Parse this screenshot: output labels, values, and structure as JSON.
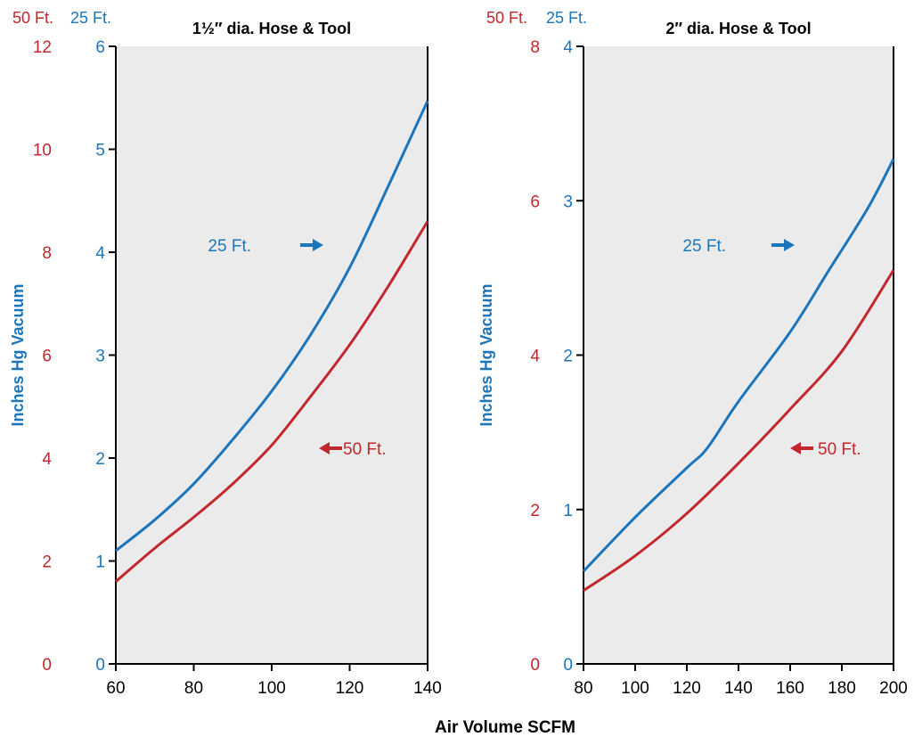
{
  "chart_data": [
    {
      "type": "line",
      "title": "1½″ dia. Hose & Tool",
      "xlabel": "Air Volume SCFM",
      "ylabel": "Inches Hg Vacuum",
      "axis_header_left": "50 Ft.",
      "axis_header_right": "25 Ft.",
      "xlim": [
        60,
        140
      ],
      "x_ticks": [
        60,
        80,
        100,
        120,
        140
      ],
      "ylim_25ft": [
        0,
        6
      ],
      "y_ticks_25ft": [
        0,
        1,
        2,
        3,
        4,
        5,
        6
      ],
      "ylim_50ft": [
        0,
        12
      ],
      "y_ticks_50ft": [
        0,
        2,
        4,
        6,
        8,
        10,
        12
      ],
      "grid": false,
      "series": [
        {
          "name": "25 Ft.",
          "axis": "25ft",
          "color": "#1b75bb",
          "annotation_arrow": "right",
          "x": [
            60,
            70,
            80,
            90,
            100,
            110,
            120,
            130,
            140
          ],
          "y": [
            1.1,
            1.4,
            1.75,
            2.18,
            2.65,
            3.2,
            3.85,
            4.65,
            5.47
          ]
        },
        {
          "name": "50 Ft.",
          "axis": "50ft",
          "color": "#c1272d",
          "annotation_arrow": "left",
          "x": [
            60,
            70,
            80,
            90,
            100,
            110,
            120,
            130,
            140
          ],
          "y": [
            1.6,
            2.25,
            2.85,
            3.5,
            4.25,
            5.2,
            6.2,
            7.35,
            8.6
          ]
        }
      ]
    },
    {
      "type": "line",
      "title": "2″ dia. Hose & Tool",
      "xlabel": "Air Volume SCFM",
      "ylabel": "Inches Hg Vacuum",
      "axis_header_left": "50 Ft.",
      "axis_header_right": "25 Ft.",
      "xlim": [
        80,
        200
      ],
      "x_ticks": [
        80,
        100,
        120,
        140,
        160,
        180,
        200
      ],
      "ylim_25ft": [
        0,
        4
      ],
      "y_ticks_25ft": [
        0,
        1,
        2,
        3,
        4
      ],
      "ylim_50ft": [
        0,
        8
      ],
      "y_ticks_50ft": [
        0,
        2,
        4,
        6,
        8
      ],
      "grid": false,
      "series": [
        {
          "name": "25 Ft.",
          "axis": "25ft",
          "color": "#1b75bb",
          "annotation_arrow": "right",
          "x": [
            80,
            100,
            120,
            128,
            140,
            160,
            175,
            190,
            200
          ],
          "y": [
            0.6,
            0.95,
            1.27,
            1.4,
            1.7,
            2.15,
            2.55,
            2.95,
            3.27
          ]
        },
        {
          "name": "50 Ft.",
          "axis": "50ft",
          "color": "#c1272d",
          "annotation_arrow": "left",
          "x": [
            80,
            100,
            120,
            140,
            160,
            180,
            200
          ],
          "y": [
            0.95,
            1.4,
            1.95,
            2.6,
            3.3,
            4.05,
            5.1
          ]
        }
      ]
    }
  ]
}
